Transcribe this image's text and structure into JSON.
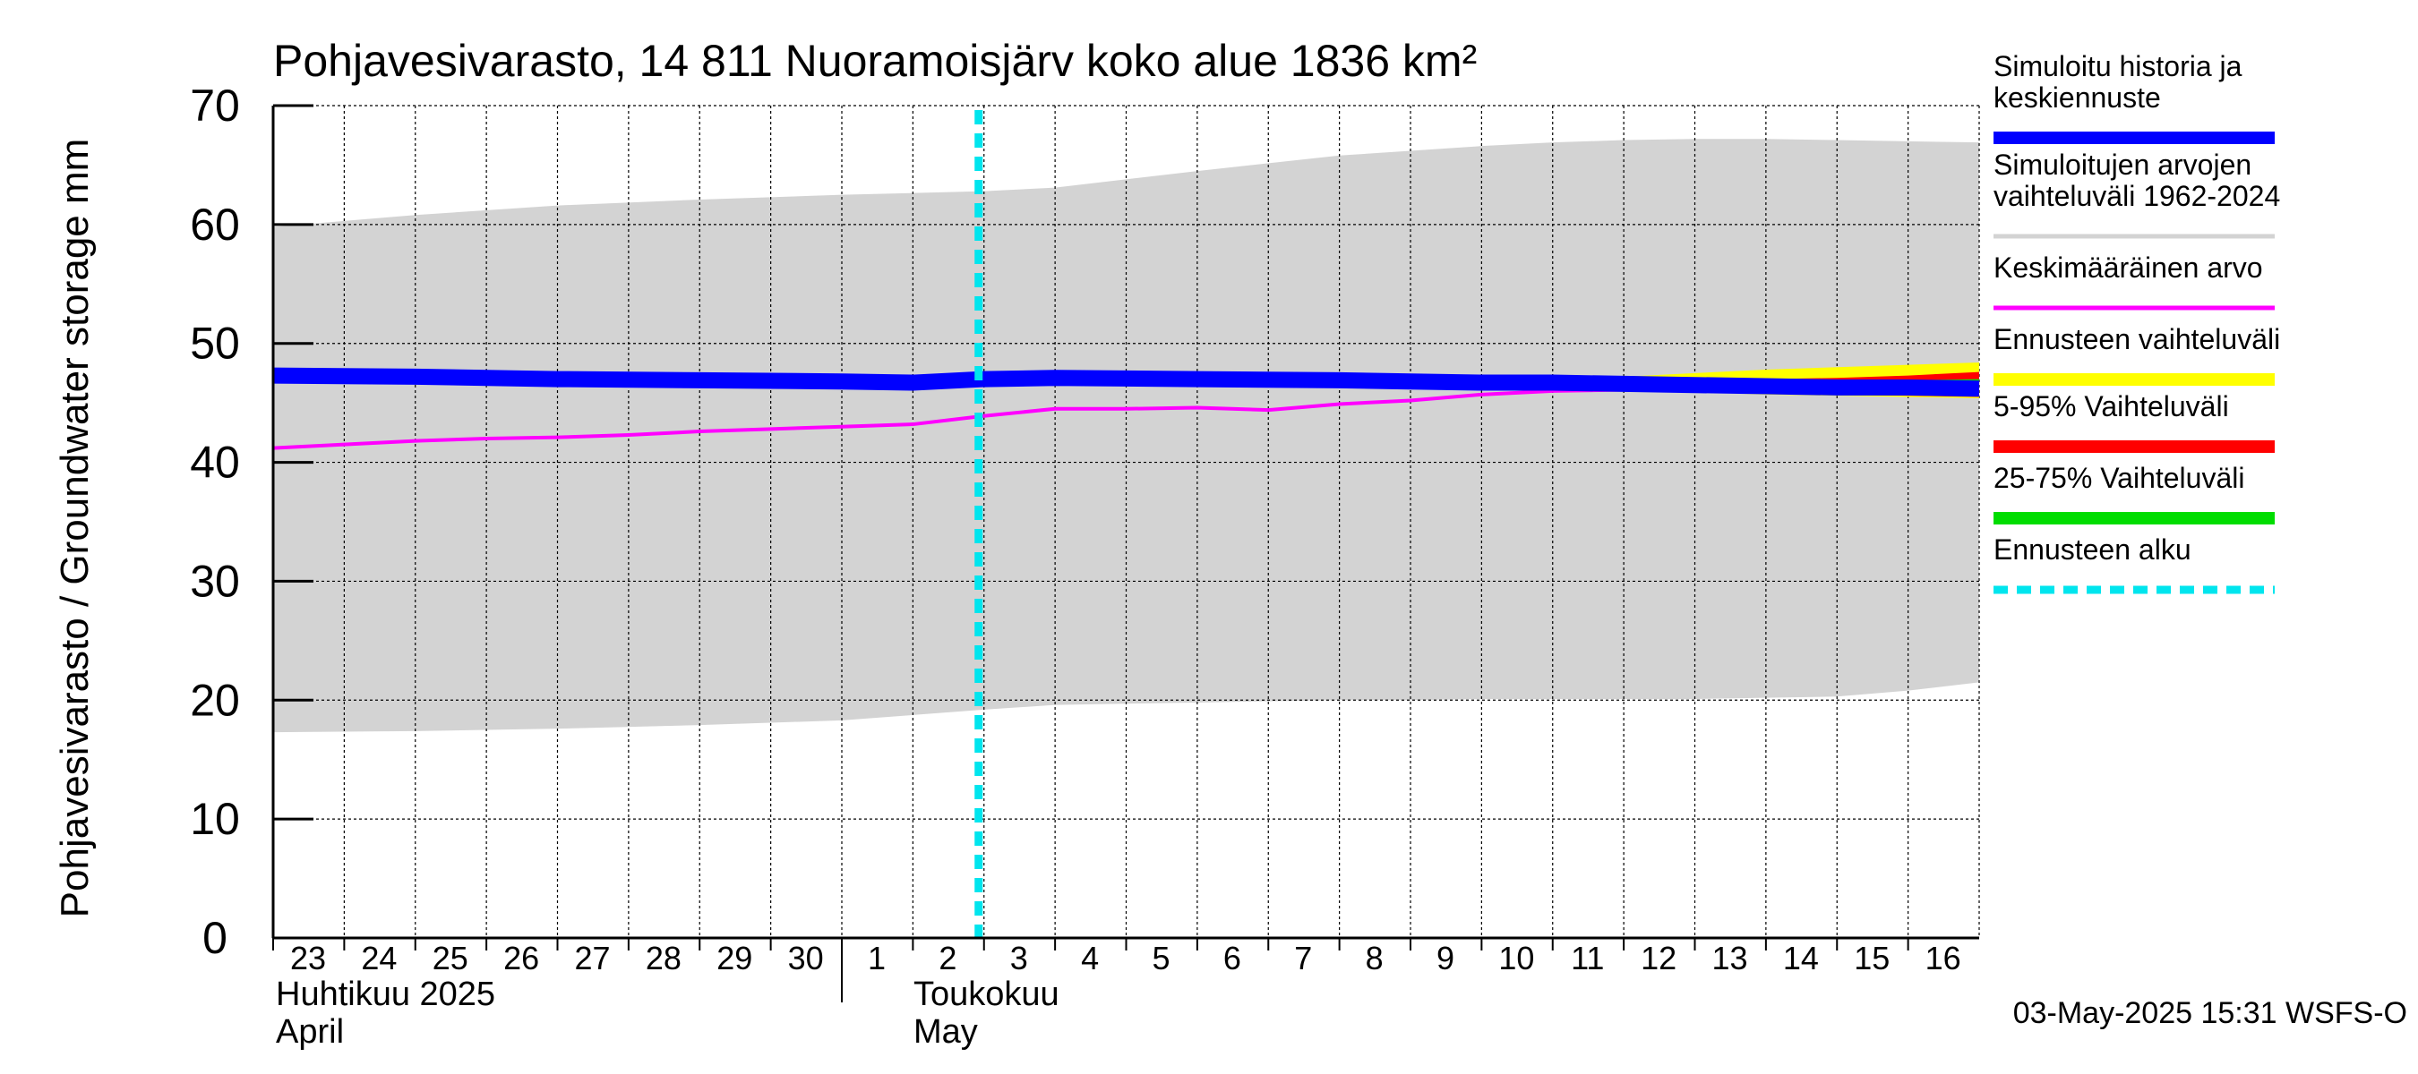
{
  "chart_data": {
    "type": "area",
    "title": "Pohjavesivarasto, 14 811 Nuoramoisjärv koko alue 1836 km²",
    "ylabel": "Pohjavesivarasto / Groundwater storage   mm",
    "ylim": [
      0,
      70
    ],
    "yticks": [
      0,
      10,
      20,
      30,
      40,
      50,
      60,
      70
    ],
    "xlim": [
      0,
      24
    ],
    "grid": true,
    "day_labels": [
      "23",
      "24",
      "25",
      "26",
      "27",
      "28",
      "29",
      "30",
      "1",
      "2",
      "3",
      "4",
      "5",
      "6",
      "7",
      "8",
      "9",
      "10",
      "11",
      "12",
      "13",
      "14",
      "15",
      "16"
    ],
    "months": [
      {
        "line1": "Huhtikuu  2025",
        "line2": "April",
        "start": 0
      },
      {
        "line1": "Toukokuu",
        "line2": "May",
        "start": 8
      }
    ],
    "forecast_start": 10,
    "series": [
      {
        "name": "Simuloitujen arvojen vaihteluväli 1962-2024",
        "kind": "band",
        "color": "#d3d3d3",
        "x": [
          0,
          2,
          4,
          6,
          8,
          10,
          11,
          13,
          15,
          16,
          17,
          18,
          19,
          20,
          21,
          22,
          23,
          24
        ],
        "upper": [
          59.8,
          60.8,
          61.6,
          62.1,
          62.5,
          62.8,
          63.1,
          64.5,
          65.8,
          66.2,
          66.6,
          66.9,
          67.1,
          67.2,
          67.2,
          67.1,
          67.0,
          66.9
        ],
        "lower": [
          17.3,
          17.4,
          17.6,
          17.9,
          18.3,
          19.2,
          19.6,
          19.8,
          20.0,
          20.0,
          20.1,
          20.1,
          20.1,
          20.1,
          20.2,
          20.3,
          20.8,
          21.5
        ]
      },
      {
        "name": "Ennusteen vaihteluväli",
        "kind": "band",
        "color": "#ffff00",
        "x": [
          18,
          19,
          20,
          21,
          22,
          23,
          24
        ],
        "upper": [
          46.9,
          47.2,
          47.5,
          47.8,
          48.0,
          48.2,
          48.4
        ],
        "lower": [
          46.3,
          46.1,
          45.9,
          45.7,
          45.6,
          45.5,
          45.4
        ]
      },
      {
        "name": "5-95% Vaihteluväli",
        "kind": "band",
        "color": "#ff0000",
        "x": [
          18,
          19,
          20,
          21,
          22,
          23,
          24
        ],
        "upper": [
          46.7,
          46.8,
          46.9,
          47.0,
          47.1,
          47.3,
          47.6
        ],
        "lower": [
          46.4,
          46.2,
          46.0,
          45.8,
          45.7,
          45.6,
          45.5
        ]
      },
      {
        "name": "25-75% Vaihteluväli",
        "kind": "band",
        "color": "#00dd00",
        "x": [
          18,
          19,
          20,
          21,
          22,
          23,
          24
        ],
        "upper": [
          46.6,
          46.6,
          46.7,
          46.7,
          46.8,
          46.9,
          47.0
        ],
        "lower": [
          46.5,
          46.4,
          46.3,
          46.2,
          46.1,
          46.0,
          46.0
        ]
      },
      {
        "name": "Keskimääräinen arvo",
        "kind": "line",
        "color": "#ff00ff",
        "x": [
          0,
          1,
          2,
          3,
          4,
          5,
          6,
          7,
          8,
          9,
          10,
          11,
          12,
          13,
          14,
          15,
          16,
          17,
          18,
          19,
          20,
          21,
          22,
          23,
          24
        ],
        "y": [
          41.2,
          41.5,
          41.8,
          42.0,
          42.1,
          42.3,
          42.6,
          42.8,
          43.0,
          43.2,
          43.9,
          44.5,
          44.5,
          44.6,
          44.4,
          44.9,
          45.2,
          45.7,
          46.0,
          46.1,
          46.2,
          46.1,
          46.0,
          45.9,
          45.9
        ]
      },
      {
        "name": "Simuloitu historia ja keskiennuste",
        "kind": "line",
        "color": "#0000ff",
        "x": [
          0,
          2,
          4,
          6,
          8,
          9,
          10,
          11,
          13,
          15,
          16,
          17,
          18,
          19,
          20,
          21,
          22,
          23,
          24
        ],
        "y": [
          47.3,
          47.2,
          47.0,
          46.9,
          46.8,
          46.7,
          47.0,
          47.1,
          47.0,
          46.9,
          46.8,
          46.7,
          46.7,
          46.6,
          46.5,
          46.4,
          46.3,
          46.3,
          46.2
        ]
      }
    ],
    "legend": {
      "placement": "right",
      "entries": [
        {
          "lines": [
            "Simuloitu historia ja",
            "keskiennuste"
          ],
          "color": "#0000ff",
          "style": "thick"
        },
        {
          "lines": [
            "Simuloitujen arvojen",
            "vaihteluväli 1962-2024"
          ],
          "color": "#d3d3d3",
          "style": "thin"
        },
        {
          "lines": [
            "Keskimääräinen arvo"
          ],
          "color": "#ff00ff",
          "style": "thin"
        },
        {
          "lines": [
            "Ennusteen vaihteluväli"
          ],
          "color": "#ffff00",
          "style": "thick"
        },
        {
          "lines": [
            "5-95% Vaihteluväli"
          ],
          "color": "#ff0000",
          "style": "thick"
        },
        {
          "lines": [
            "25-75% Vaihteluväli"
          ],
          "color": "#00dd00",
          "style": "thick"
        },
        {
          "lines": [
            "Ennusteen alku"
          ],
          "color": "#00e5ee",
          "style": "dashed"
        }
      ]
    },
    "footer": "03-May-2025 15:31 WSFS-O"
  }
}
